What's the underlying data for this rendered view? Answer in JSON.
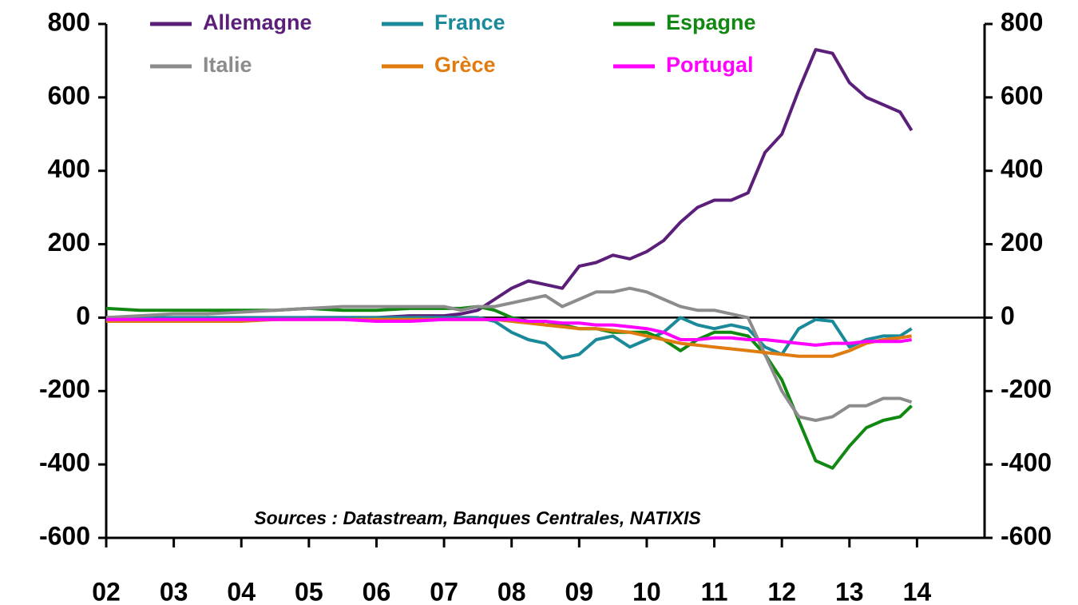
{
  "chart_data": {
    "type": "line",
    "annotation": "Sources : Datastream, Banques Centrales, NATIXIS",
    "x": [
      2002,
      2002.5,
      2003,
      2003.5,
      2004,
      2004.5,
      2005,
      2005.5,
      2006,
      2006.5,
      2007,
      2007.25,
      2007.5,
      2007.75,
      2008,
      2008.25,
      2008.5,
      2008.75,
      2009,
      2009.25,
      2009.5,
      2009.75,
      2010,
      2010.25,
      2010.5,
      2010.75,
      2011,
      2011.25,
      2011.5,
      2011.75,
      2012,
      2012.25,
      2012.5,
      2012.75,
      2013,
      2013.25,
      2013.5,
      2013.75,
      2013.92
    ],
    "series": [
      {
        "name": "Allemagne",
        "color": "#5b1f7a",
        "values": [
          0,
          0,
          -5,
          0,
          -5,
          -5,
          0,
          0,
          0,
          5,
          5,
          10,
          20,
          50,
          80,
          100,
          90,
          80,
          140,
          150,
          170,
          160,
          180,
          210,
          260,
          300,
          320,
          320,
          340,
          450,
          500,
          620,
          730,
          720,
          640,
          600,
          580,
          560,
          510
        ]
      },
      {
        "name": "France",
        "color": "#1a8a9a",
        "values": [
          0,
          0,
          0,
          0,
          0,
          0,
          0,
          0,
          0,
          0,
          0,
          0,
          0,
          -10,
          -40,
          -60,
          -70,
          -110,
          -100,
          -60,
          -50,
          -80,
          -60,
          -40,
          0,
          -20,
          -30,
          -20,
          -30,
          -80,
          -100,
          -30,
          -5,
          -10,
          -80,
          -60,
          -50,
          -50,
          -30
        ]
      },
      {
        "name": "Espagne",
        "color": "#118811",
        "values": [
          25,
          20,
          20,
          20,
          20,
          20,
          25,
          20,
          20,
          25,
          25,
          25,
          30,
          20,
          0,
          -10,
          -20,
          -20,
          -30,
          -30,
          -40,
          -40,
          -40,
          -60,
          -90,
          -60,
          -40,
          -40,
          -50,
          -100,
          -170,
          -280,
          -390,
          -410,
          -350,
          -300,
          -280,
          -270,
          -240
        ]
      },
      {
        "name": "Italie",
        "color": "#8c8c8c",
        "values": [
          0,
          5,
          10,
          10,
          15,
          20,
          25,
          30,
          30,
          30,
          30,
          20,
          30,
          30,
          40,
          50,
          60,
          30,
          50,
          70,
          70,
          80,
          70,
          50,
          30,
          20,
          20,
          10,
          0,
          -100,
          -200,
          -270,
          -280,
          -270,
          -240,
          -240,
          -220,
          -220,
          -230
        ]
      },
      {
        "name": "Grèce",
        "color": "#e07b10",
        "values": [
          -10,
          -10,
          -10,
          -10,
          -10,
          -5,
          -5,
          -5,
          -5,
          -5,
          -5,
          -5,
          -5,
          -5,
          -10,
          -15,
          -20,
          -25,
          -30,
          -30,
          -35,
          -40,
          -50,
          -60,
          -70,
          -75,
          -80,
          -85,
          -90,
          -95,
          -100,
          -105,
          -105,
          -105,
          -90,
          -70,
          -60,
          -55,
          -50
        ]
      },
      {
        "name": "Portugal",
        "color": "#ff00ff",
        "values": [
          -5,
          -5,
          -5,
          -5,
          -5,
          -5,
          -5,
          -5,
          -10,
          -10,
          -5,
          -5,
          -5,
          -5,
          -5,
          -10,
          -10,
          -15,
          -15,
          -20,
          -20,
          -25,
          -30,
          -40,
          -60,
          -60,
          -55,
          -55,
          -60,
          -60,
          -65,
          -70,
          -75,
          -70,
          -70,
          -65,
          -65,
          -65,
          -60
        ]
      }
    ],
    "xlim": [
      2002,
      2015
    ],
    "xticks": [
      {
        "value": 2002,
        "label": "02"
      },
      {
        "value": 2003,
        "label": "03"
      },
      {
        "value": 2004,
        "label": "04"
      },
      {
        "value": 2005,
        "label": "05"
      },
      {
        "value": 2006,
        "label": "06"
      },
      {
        "value": 2007,
        "label": "07"
      },
      {
        "value": 2008,
        "label": "08"
      },
      {
        "value": 2009,
        "label": "09"
      },
      {
        "value": 2010,
        "label": "10"
      },
      {
        "value": 2011,
        "label": "11"
      },
      {
        "value": 2012,
        "label": "12"
      },
      {
        "value": 2013,
        "label": "13"
      },
      {
        "value": 2014,
        "label": "14"
      }
    ],
    "ylim": [
      -600,
      800
    ],
    "yticks": [
      -600,
      -400,
      -200,
      0,
      200,
      400,
      600,
      800
    ],
    "grid": false
  }
}
